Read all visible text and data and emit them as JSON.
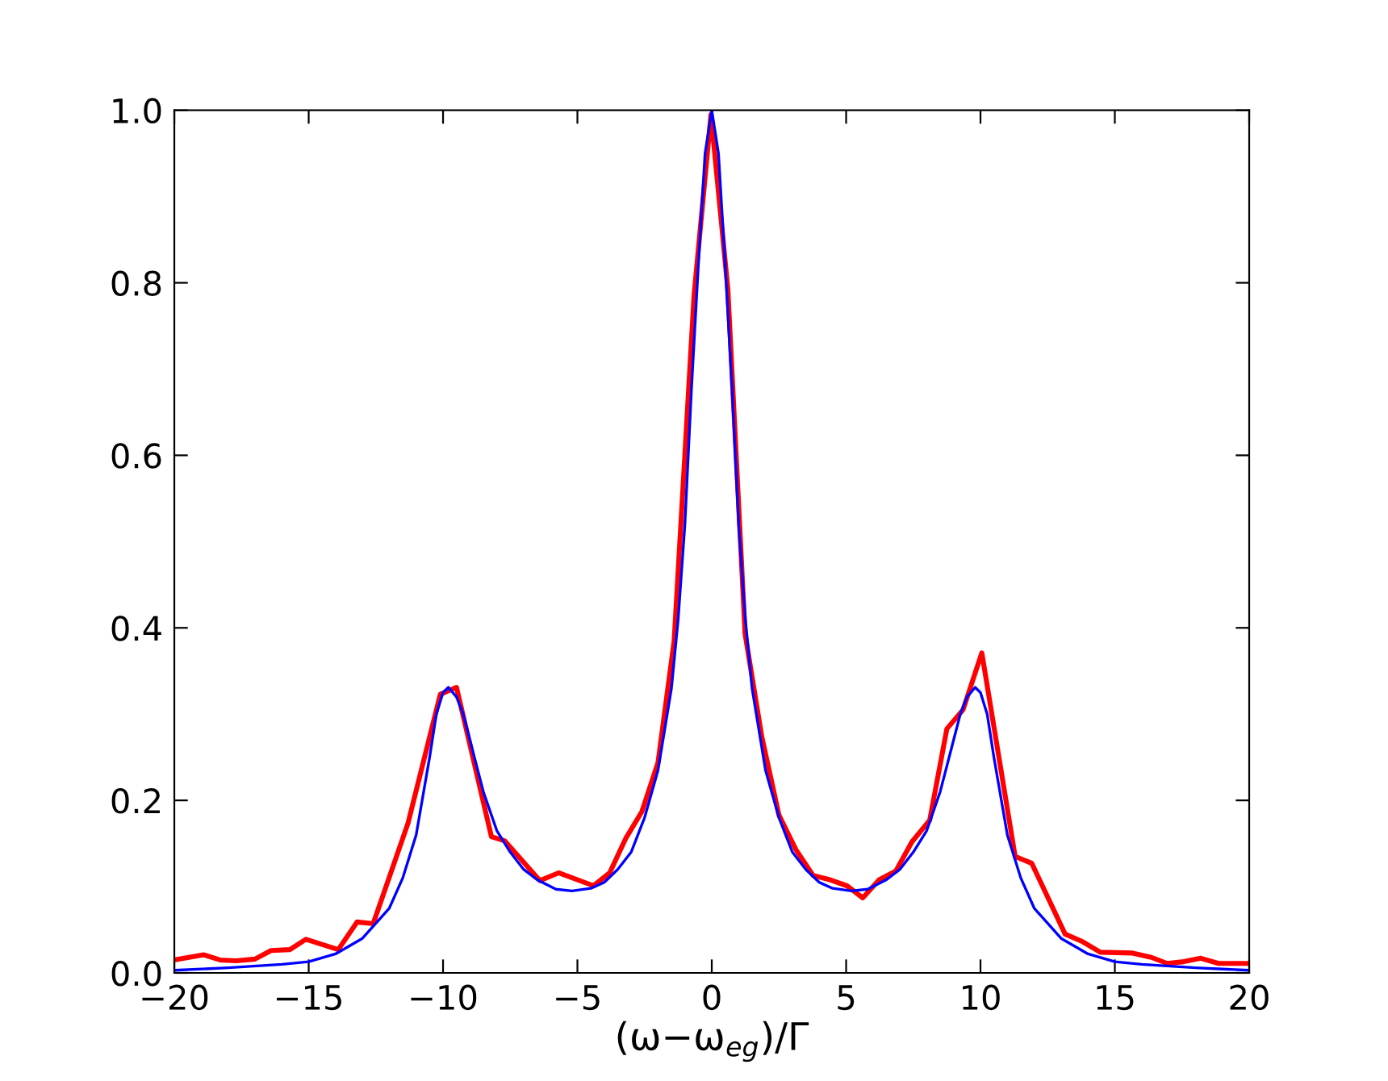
{
  "chart_data": {
    "type": "line",
    "xlabel": "(ω−ω$_{eg}$)/Γ",
    "xlim": [
      -20,
      20
    ],
    "ylim": [
      0,
      1.0
    ],
    "xticks": [
      {
        "value": -20,
        "label": "−20"
      },
      {
        "value": -15,
        "label": "−15"
      },
      {
        "value": -10,
        "label": "−10"
      },
      {
        "value": -5,
        "label": "−5"
      },
      0,
      5,
      10,
      15,
      20
    ],
    "yticks": [
      {
        "value": 0,
        "label": "0.0"
      },
      0.2,
      0.4,
      0.6,
      0.8,
      {
        "value": 1.0,
        "label": "1.0"
      }
    ],
    "grid": false,
    "marker": "none",
    "line_style": "solid",
    "series": [
      {
        "color": "#ff0000",
        "x": [
          -20,
          -18.9,
          -18.3,
          -17.7,
          -17.0,
          -16.4,
          -15.7,
          -15.1,
          -13.9,
          -13.2,
          -12.6,
          -11.3,
          -10.1,
          -9.5,
          -8.2,
          -7.7,
          -6.4,
          -5.7,
          -4.4,
          -3.8,
          -3.2,
          -2.6,
          -2.0,
          -1.4,
          -0.66,
          -0.03,
          0.6,
          1.24,
          1.86,
          2.5,
          3.13,
          3.77,
          4.4,
          5.03,
          5.62,
          6.23,
          6.85,
          7.45,
          8.11,
          8.75,
          9.35,
          10.05,
          11.29,
          11.91,
          13.15,
          13.75,
          14.46,
          15.66,
          16.36,
          16.95,
          17.56,
          18.2,
          18.86,
          19.95
        ],
        "values": [
          0.015,
          0.021,
          0.015,
          0.014,
          0.016,
          0.026,
          0.027,
          0.039,
          0.027,
          0.059,
          0.057,
          0.174,
          0.323,
          0.331,
          0.158,
          0.153,
          0.107,
          0.116,
          0.101,
          0.116,
          0.156,
          0.187,
          0.244,
          0.385,
          0.785,
          0.995,
          0.792,
          0.393,
          0.274,
          0.183,
          0.143,
          0.113,
          0.108,
          0.101,
          0.087,
          0.108,
          0.118,
          0.152,
          0.177,
          0.283,
          0.305,
          0.371,
          0.135,
          0.127,
          0.045,
          0.037,
          0.024,
          0.023,
          0.018,
          0.011,
          0.013,
          0.017,
          0.011,
          0.011
        ]
      },
      {
        "color": "#0000ff",
        "x": [
          -20,
          -18,
          -16,
          -15,
          -14,
          -13,
          -12,
          -11.5,
          -11,
          -10.5,
          -10.25,
          -10,
          -9.8,
          -9.5,
          -9.25,
          -9,
          -8.75,
          -8.5,
          -8,
          -7.5,
          -7,
          -6.5,
          -5.8,
          -5.2,
          -4.5,
          -4,
          -3.5,
          -3,
          -2.5,
          -2,
          -1.5,
          -1.25,
          -1,
          -0.75,
          -0.5,
          -0.25,
          0,
          0.25,
          0.5,
          0.75,
          1,
          1.25,
          1.5,
          2,
          2.5,
          3,
          3.5,
          4,
          4.5,
          5.2,
          5.8,
          6.5,
          7,
          7.5,
          8,
          8.5,
          8.75,
          9,
          9.25,
          9.5,
          9.8,
          10,
          10.25,
          10.5,
          11,
          11.5,
          12,
          13,
          14,
          15,
          16,
          18,
          20
        ],
        "values": [
          0.003,
          0.006,
          0.01,
          0.013,
          0.022,
          0.04,
          0.075,
          0.11,
          0.16,
          0.25,
          0.3,
          0.325,
          0.331,
          0.32,
          0.3,
          0.27,
          0.24,
          0.21,
          0.165,
          0.14,
          0.12,
          0.108,
          0.097,
          0.095,
          0.098,
          0.105,
          0.12,
          0.14,
          0.18,
          0.235,
          0.33,
          0.41,
          0.52,
          0.68,
          0.82,
          0.95,
          1.0,
          0.95,
          0.82,
          0.68,
          0.52,
          0.41,
          0.33,
          0.235,
          0.18,
          0.14,
          0.12,
          0.105,
          0.098,
          0.095,
          0.097,
          0.108,
          0.12,
          0.14,
          0.165,
          0.21,
          0.24,
          0.27,
          0.3,
          0.32,
          0.331,
          0.325,
          0.3,
          0.25,
          0.16,
          0.11,
          0.075,
          0.04,
          0.022,
          0.013,
          0.01,
          0.006,
          0.003
        ]
      }
    ]
  }
}
